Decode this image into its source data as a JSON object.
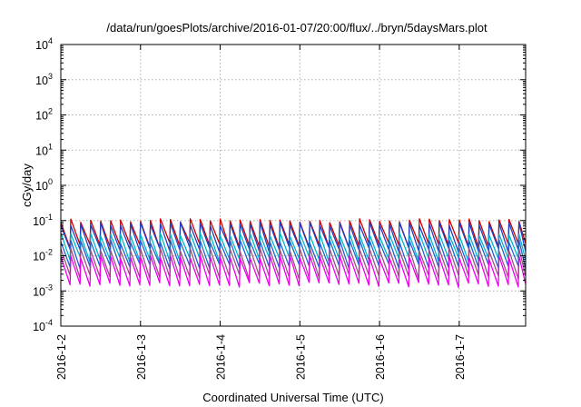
{
  "chart_data": {
    "type": "line",
    "title": "/data/run/goesPlots/archive/2016-01-07/20:00/flux/../bryn/5daysMars.plot",
    "xlabel": "Coordinated Universal Time (UTC)",
    "ylabel": "cGy/day",
    "yscale": "log",
    "ylim": [
      0.0001,
      10000
    ],
    "xlim": [
      "2016-01-02T00:00",
      "2016-01-07T20:00"
    ],
    "x_ticks": [
      "2016-1-2",
      "2016-1-3",
      "2016-1-4",
      "2016-1-5",
      "2016-1-6",
      "2016-1-7"
    ],
    "y_ticks": [
      {
        "base": "10",
        "exp": "-4"
      },
      {
        "base": "10",
        "exp": "-3"
      },
      {
        "base": "10",
        "exp": "-2"
      },
      {
        "base": "10",
        "exp": "-1"
      },
      {
        "base": "10",
        "exp": "0"
      },
      {
        "base": "10",
        "exp": "1"
      },
      {
        "base": "10",
        "exp": "2"
      },
      {
        "base": "10",
        "exp": "3"
      },
      {
        "base": "10",
        "exp": "4"
      }
    ],
    "grid": true,
    "series_pattern": "sawtooth, approx. 8 cycles per day",
    "series": [
      {
        "color": "#cc0000",
        "peak": 0.1,
        "trough": 0.02
      },
      {
        "color": "#1f3fbf",
        "peak": 0.08,
        "trough": 0.015
      },
      {
        "color": "#00b4c8",
        "peak": 0.04,
        "trough": 0.008
      },
      {
        "color": "#2060d0",
        "peak": 0.025,
        "trough": 0.005
      },
      {
        "color": "#a05080",
        "peak": 0.015,
        "trough": 0.0025
      },
      {
        "color": "#ee00ee",
        "peak": 0.009,
        "trough": 0.0015
      }
    ]
  }
}
